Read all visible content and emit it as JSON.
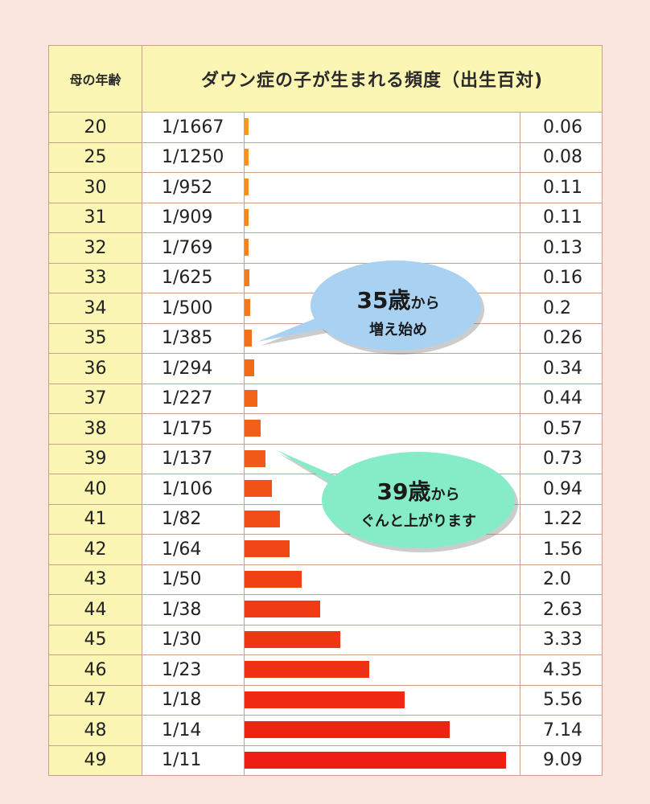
{
  "chart_data": {
    "type": "table",
    "headers": {
      "age": "母の年齢",
      "title": "ダウン症の子が生まれる頻度（出生百対)"
    },
    "rows": [
      {
        "age": "20",
        "ratio": "1/1667",
        "value": 0.06,
        "label": "0.06"
      },
      {
        "age": "25",
        "ratio": "1/1250",
        "value": 0.08,
        "label": "0.08"
      },
      {
        "age": "30",
        "ratio": "1/952",
        "value": 0.11,
        "label": "0.11"
      },
      {
        "age": "31",
        "ratio": "1/909",
        "value": 0.11,
        "label": "0.11"
      },
      {
        "age": "32",
        "ratio": "1/769",
        "value": 0.13,
        "label": "0.13"
      },
      {
        "age": "33",
        "ratio": "1/625",
        "value": 0.16,
        "label": "0.16"
      },
      {
        "age": "34",
        "ratio": "1/500",
        "value": 0.2,
        "label": "0.2"
      },
      {
        "age": "35",
        "ratio": "1/385",
        "value": 0.26,
        "label": "0.26"
      },
      {
        "age": "36",
        "ratio": "1/294",
        "value": 0.34,
        "label": "0.34"
      },
      {
        "age": "37",
        "ratio": "1/227",
        "value": 0.44,
        "label": "0.44"
      },
      {
        "age": "38",
        "ratio": "1/175",
        "value": 0.57,
        "label": "0.57"
      },
      {
        "age": "39",
        "ratio": "1/137",
        "value": 0.73,
        "label": "0.73"
      },
      {
        "age": "40",
        "ratio": "1/106",
        "value": 0.94,
        "label": "0.94"
      },
      {
        "age": "41",
        "ratio": "1/82",
        "value": 1.22,
        "label": "1.22"
      },
      {
        "age": "42",
        "ratio": "1/64",
        "value": 1.56,
        "label": "1.56"
      },
      {
        "age": "43",
        "ratio": "1/50",
        "value": 2.0,
        "label": "2.0"
      },
      {
        "age": "44",
        "ratio": "1/38",
        "value": 2.63,
        "label": "2.63"
      },
      {
        "age": "45",
        "ratio": "1/30",
        "value": 3.33,
        "label": "3.33"
      },
      {
        "age": "46",
        "ratio": "1/23",
        "value": 4.35,
        "label": "4.35"
      },
      {
        "age": "47",
        "ratio": "1/18",
        "value": 5.56,
        "label": "5.56"
      },
      {
        "age": "48",
        "ratio": "1/14",
        "value": 7.14,
        "label": "7.14"
      },
      {
        "age": "49",
        "ratio": "1/11",
        "value": 9.09,
        "label": "9.09"
      }
    ],
    "xlim": [
      0,
      9.6
    ]
  },
  "callouts": [
    {
      "big": "35歳",
      "small_after": "から",
      "line2": "増え始め",
      "fill": "#a9d2f2"
    },
    {
      "big": "39歳",
      "small_after": "から",
      "line2": "ぐんと上がります",
      "fill": "#86ecc8"
    }
  ],
  "colors": {
    "bar_low": "#f59a1e",
    "bar_high": "#ee1e12",
    "header_bg": "#fbf6b4",
    "page_bg": "#fbe5df"
  }
}
